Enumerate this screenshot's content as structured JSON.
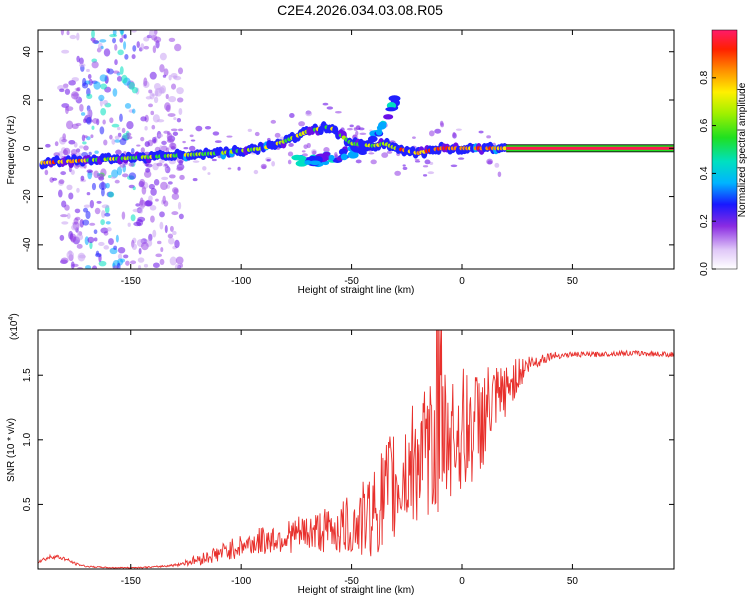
{
  "title": "C2E4.2026.034.03.08.R05",
  "chart_data": [
    {
      "type": "heatmap",
      "xlabel": "Height of straight line (km)",
      "ylabel": "Frequency (Hz)",
      "xlim": [
        -192,
        96
      ],
      "ylim": [
        -50,
        49
      ],
      "xticks": [
        -150,
        -100,
        -50,
        0,
        50
      ],
      "xtick_labels": [
        "-150",
        "-100",
        "-50",
        "0",
        "50"
      ],
      "yticks": [
        -40,
        -20,
        0,
        20,
        40
      ],
      "ytick_labels": [
        "-40",
        "-20",
        "0",
        "20",
        "40"
      ],
      "grid": false,
      "ridge": {
        "x": [
          -190,
          -170,
          -150,
          -130,
          -110,
          -100,
          -90,
          -80,
          -70,
          -60,
          -50,
          -40,
          -35,
          -30,
          -25,
          -20,
          -15,
          -10,
          0,
          10,
          20,
          95
        ],
        "frequency": [
          -6,
          -5,
          -4,
          -3,
          -2,
          -1,
          0,
          3,
          7,
          9,
          2,
          1,
          2,
          0,
          -1,
          -2,
          -1,
          0,
          0,
          0,
          0,
          0
        ]
      },
      "secondary_branch": {
        "x": [
          -75,
          -65,
          -55,
          -45,
          -40,
          -35,
          -30
        ],
        "frequency": [
          -5,
          -5,
          -3,
          0,
          4,
          10,
          20
        ]
      },
      "steady_line_start_km": 20,
      "colorbar": {
        "label": "Normalized spectral amplitude",
        "ticks": [
          0.0,
          0.2,
          0.4,
          0.6,
          0.8
        ],
        "tick_labels": [
          "0.0",
          "0.2",
          "0.4",
          "0.6",
          "0.8"
        ],
        "range": [
          0,
          1
        ]
      }
    },
    {
      "type": "line",
      "xlabel": "Height of straight line (km)",
      "ylabel": "SNR (10 * v/v)",
      "scale_label": "(x10",
      "scale_exponent": "4",
      "scale_suffix": ")",
      "xlim": [
        -192,
        96
      ],
      "ylim": [
        0,
        18500
      ],
      "xticks": [
        -150,
        -100,
        -50,
        0,
        50
      ],
      "xtick_labels": [
        "-150",
        "-100",
        "-50",
        "0",
        "50"
      ],
      "yticks": [
        5000,
        10000,
        15000
      ],
      "ytick_labels": [
        "0.5",
        "1.0",
        "1.5"
      ],
      "color": "#e8302c",
      "series": [
        {
          "name": "SNR",
          "x": [
            -192,
            -185,
            -180,
            -175,
            -170,
            -160,
            -150,
            -140,
            -130,
            -120,
            -110,
            -100,
            -90,
            -80,
            -70,
            -60,
            -50,
            -45,
            -40,
            -35,
            -30,
            -25,
            -20,
            -15,
            -10,
            -5,
            0,
            5,
            10,
            15,
            20,
            25,
            30,
            40,
            50,
            60,
            70,
            80,
            96
          ],
          "y": [
            600,
            1000,
            800,
            400,
            200,
            100,
            100,
            150,
            300,
            700,
            1200,
            1800,
            2200,
            2500,
            2800,
            3000,
            3300,
            3700,
            4500,
            5500,
            6500,
            7500,
            8600,
            9000,
            10000,
            10500,
            10600,
            11000,
            11800,
            12700,
            13800,
            15000,
            15800,
            16500,
            16600,
            16600,
            16700,
            16700,
            16600
          ],
          "noise_amplitude": [
            150,
            200,
            150,
            100,
            60,
            40,
            40,
            60,
            100,
            400,
            700,
            900,
            1100,
            1300,
            1500,
            1800,
            2500,
            3000,
            3500,
            4500,
            5000,
            5000,
            5000,
            5000,
            6000,
            5000,
            5000,
            4500,
            4000,
            3000,
            2000,
            1500,
            800,
            300,
            200,
            200,
            200,
            200,
            200
          ]
        }
      ]
    }
  ]
}
